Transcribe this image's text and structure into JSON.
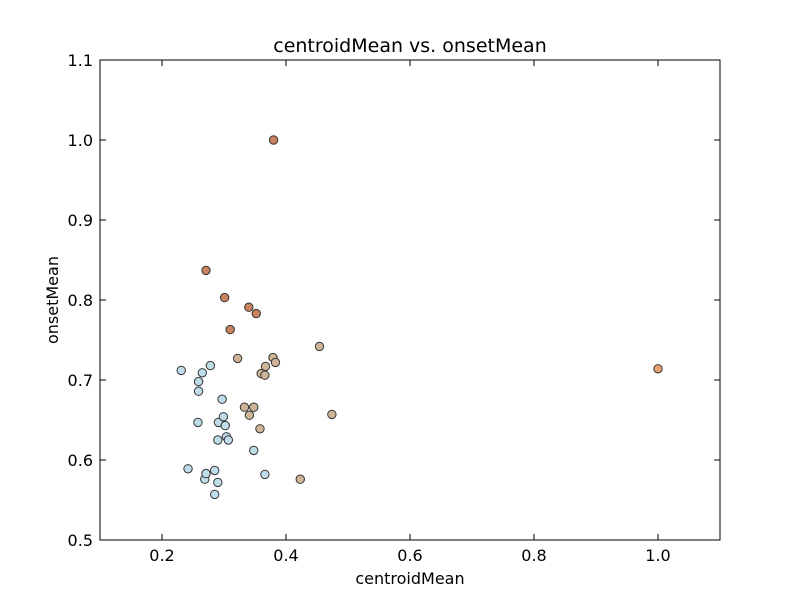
{
  "chart_data": {
    "type": "scatter",
    "title": "centroidMean vs. onsetMean",
    "xlabel": "centroidMean",
    "ylabel": "onsetMean",
    "xlim": [
      0.1,
      1.1
    ],
    "ylim": [
      0.5,
      1.1
    ],
    "xticks": [
      0.2,
      0.4,
      0.6,
      0.8,
      1.0
    ],
    "xtick_labels": [
      "0.2",
      "0.4",
      "0.6",
      "0.8",
      "1.0"
    ],
    "yticks": [
      0.5,
      0.6,
      0.7,
      0.8,
      0.9,
      1.0,
      1.1
    ],
    "ytick_labels": [
      "0.5",
      "0.6",
      "0.7",
      "0.8",
      "0.9",
      "1.0",
      "1.1"
    ],
    "grid": false,
    "colors": {
      "light_blue": "#bfdcea",
      "tan": "#cfb597",
      "orange_brown": "#c8825e",
      "orange": "#e8a271"
    },
    "points": [
      {
        "x": 0.231,
        "y": 0.712,
        "color": "#bfdcea"
      },
      {
        "x": 0.242,
        "y": 0.589,
        "color": "#bfdcea"
      },
      {
        "x": 0.258,
        "y": 0.647,
        "color": "#bfdcea"
      },
      {
        "x": 0.259,
        "y": 0.698,
        "color": "#bfdcea"
      },
      {
        "x": 0.259,
        "y": 0.686,
        "color": "#bfdcea"
      },
      {
        "x": 0.265,
        "y": 0.709,
        "color": "#bfdcea"
      },
      {
        "x": 0.269,
        "y": 0.576,
        "color": "#bfdcea"
      },
      {
        "x": 0.271,
        "y": 0.583,
        "color": "#bfdcea"
      },
      {
        "x": 0.278,
        "y": 0.718,
        "color": "#bfdcea"
      },
      {
        "x": 0.285,
        "y": 0.587,
        "color": "#bfdcea"
      },
      {
        "x": 0.285,
        "y": 0.557,
        "color": "#bfdcea"
      },
      {
        "x": 0.29,
        "y": 0.572,
        "color": "#bfdcea"
      },
      {
        "x": 0.29,
        "y": 0.625,
        "color": "#bfdcea"
      },
      {
        "x": 0.291,
        "y": 0.647,
        "color": "#bfdcea"
      },
      {
        "x": 0.297,
        "y": 0.676,
        "color": "#bfdcea"
      },
      {
        "x": 0.299,
        "y": 0.654,
        "color": "#bfdcea"
      },
      {
        "x": 0.302,
        "y": 0.643,
        "color": "#bfdcea"
      },
      {
        "x": 0.304,
        "y": 0.629,
        "color": "#bfdcea"
      },
      {
        "x": 0.307,
        "y": 0.625,
        "color": "#bfdcea"
      },
      {
        "x": 0.348,
        "y": 0.612,
        "color": "#bfdcea"
      },
      {
        "x": 0.366,
        "y": 0.582,
        "color": "#bfdcea"
      },
      {
        "x": 0.322,
        "y": 0.727,
        "color": "#cfb597"
      },
      {
        "x": 0.333,
        "y": 0.666,
        "color": "#cfb597"
      },
      {
        "x": 0.341,
        "y": 0.656,
        "color": "#cfb597"
      },
      {
        "x": 0.348,
        "y": 0.666,
        "color": "#cfb597"
      },
      {
        "x": 0.358,
        "y": 0.639,
        "color": "#cfb597"
      },
      {
        "x": 0.36,
        "y": 0.708,
        "color": "#cfb597"
      },
      {
        "x": 0.366,
        "y": 0.706,
        "color": "#cfb597"
      },
      {
        "x": 0.367,
        "y": 0.717,
        "color": "#cfb597"
      },
      {
        "x": 0.379,
        "y": 0.728,
        "color": "#cfb597"
      },
      {
        "x": 0.383,
        "y": 0.722,
        "color": "#cfb597"
      },
      {
        "x": 0.423,
        "y": 0.576,
        "color": "#cfb597"
      },
      {
        "x": 0.454,
        "y": 0.742,
        "color": "#cfb597"
      },
      {
        "x": 0.474,
        "y": 0.657,
        "color": "#cfb597"
      },
      {
        "x": 0.271,
        "y": 0.837,
        "color": "#c8825e"
      },
      {
        "x": 0.301,
        "y": 0.803,
        "color": "#c8825e"
      },
      {
        "x": 0.31,
        "y": 0.763,
        "color": "#c8825e"
      },
      {
        "x": 0.34,
        "y": 0.791,
        "color": "#c8825e"
      },
      {
        "x": 0.352,
        "y": 0.783,
        "color": "#c8825e"
      },
      {
        "x": 0.38,
        "y": 1.0,
        "color": "#c8825e"
      },
      {
        "x": 1.0,
        "y": 0.714,
        "color": "#e8a271"
      }
    ]
  }
}
